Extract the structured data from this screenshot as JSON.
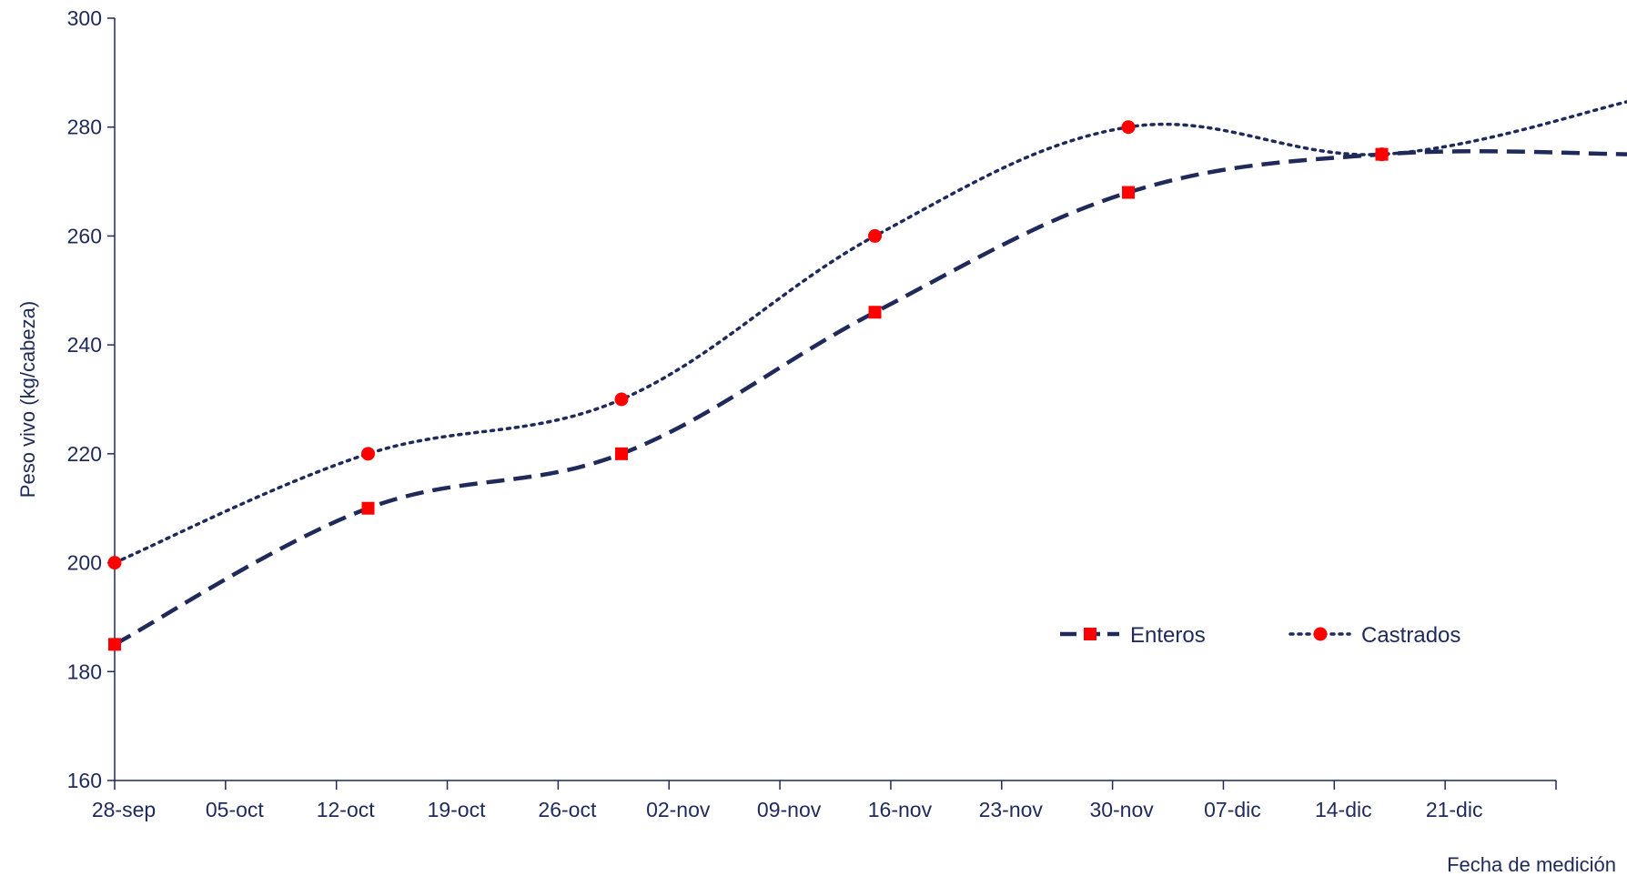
{
  "chart_data": {
    "type": "line",
    "title": "",
    "xlabel": "Fecha de medición",
    "ylabel": "Peso vivo (kg/cabeza)",
    "x_type": "date",
    "x_tick_labels": [
      "28-sep",
      "05-oct",
      "12-oct",
      "19-oct",
      "26-oct",
      "02-nov",
      "09-nov",
      "16-nov",
      "23-nov",
      "30-nov",
      "07-dic",
      "14-dic",
      "21-dic"
    ],
    "x_tick_dates": [
      "09-28",
      "10-05",
      "10-12",
      "10-19",
      "10-26",
      "11-02",
      "11-09",
      "11-16",
      "11-23",
      "11-30",
      "12-07",
      "12-14",
      "12-21"
    ],
    "x_range": [
      "09-28",
      "12-28"
    ],
    "ylim": [
      160,
      300
    ],
    "y_ticks": [
      160,
      180,
      200,
      220,
      240,
      260,
      280,
      300
    ],
    "grid": false,
    "legend_position": "inside-right",
    "series": [
      {
        "name": "Enteros",
        "line_style": "dashed",
        "marker": "square",
        "line_color": "#1f2a5a",
        "marker_color": "#ff0000",
        "points": [
          {
            "x": "09-28",
            "y": 185
          },
          {
            "x": "10-14",
            "y": 210
          },
          {
            "x": "10-30",
            "y": 220
          },
          {
            "x": "11-15",
            "y": 246
          },
          {
            "x": "12-01",
            "y": 268
          },
          {
            "x": "12-17",
            "y": 275
          },
          {
            "x": "01-02",
            "y": 275
          }
        ]
      },
      {
        "name": "Castrados",
        "line_style": "dotted",
        "marker": "circle",
        "line_color": "#1f2a5a",
        "marker_color": "#ff0000",
        "points": [
          {
            "x": "09-28",
            "y": 200
          },
          {
            "x": "10-14",
            "y": 220
          },
          {
            "x": "10-30",
            "y": 230
          },
          {
            "x": "11-15",
            "y": 260
          },
          {
            "x": "12-01",
            "y": 280
          },
          {
            "x": "12-17",
            "y": 275
          },
          {
            "x": "01-02",
            "y": 285
          }
        ]
      }
    ]
  }
}
